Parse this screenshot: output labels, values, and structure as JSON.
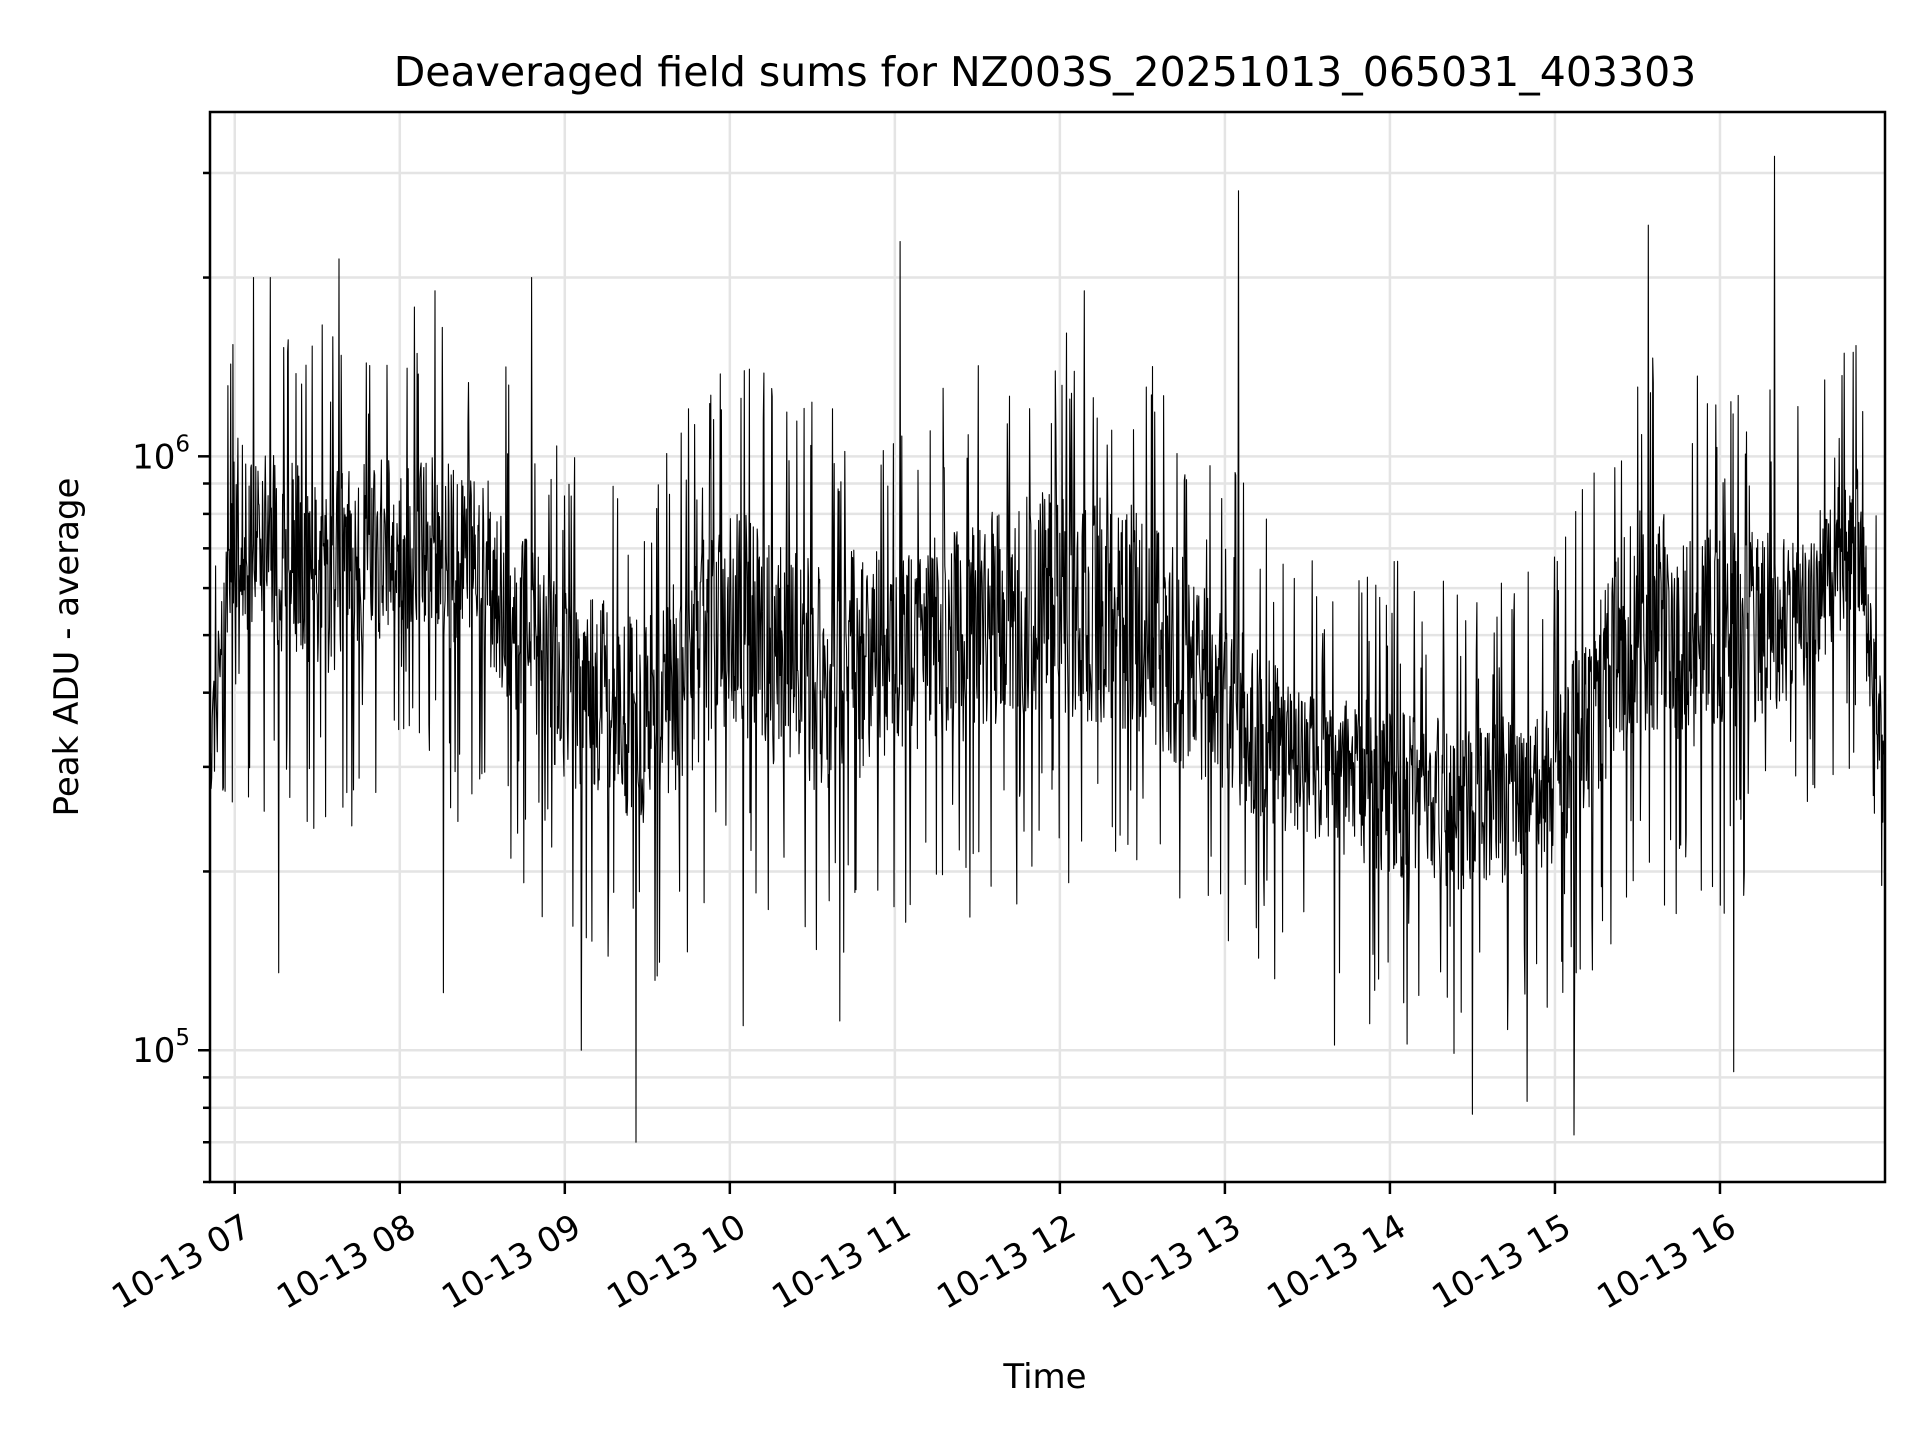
{
  "chart_data": {
    "type": "line",
    "title": "Deaveraged field sums for NZ003S_20251013_065031_403303",
    "xlabel": "Time",
    "ylabel": "Peak ADU - average",
    "x_range": [
      "2025-10-13 06:51",
      "2025-10-13 17:00"
    ],
    "ylim": [
      60000,
      3800000
    ],
    "y_scale": "log",
    "grid": true,
    "line_color": "#000000",
    "x_ticks": [
      {
        "label": "10-13 07",
        "hour": 7
      },
      {
        "label": "10-13 08",
        "hour": 8
      },
      {
        "label": "10-13 09",
        "hour": 9
      },
      {
        "label": "10-13 10",
        "hour": 10
      },
      {
        "label": "10-13 11",
        "hour": 11
      },
      {
        "label": "10-13 12",
        "hour": 12
      },
      {
        "label": "10-13 13",
        "hour": 13
      },
      {
        "label": "10-13 14",
        "hour": 14
      },
      {
        "label": "10-13 15",
        "hour": 15
      },
      {
        "label": "10-13 16",
        "hour": 16
      }
    ],
    "y_major_ticks": [
      {
        "base": "10",
        "exp": "5",
        "value": 100000
      },
      {
        "base": "10",
        "exp": "6",
        "value": 1000000
      }
    ],
    "envelope": [
      {
        "time": "06:51",
        "low": 240000,
        "high": 380000
      },
      {
        "time": "07:00",
        "low": 450000,
        "high": 1300000
      },
      {
        "time": "07:30",
        "low": 350000,
        "high": 1100000
      },
      {
        "time": "08:00",
        "low": 450000,
        "high": 1200000
      },
      {
        "time": "08:30",
        "low": 380000,
        "high": 1100000
      },
      {
        "time": "09:00",
        "low": 240000,
        "high": 700000
      },
      {
        "time": "09:30",
        "low": 200000,
        "high": 650000
      },
      {
        "time": "10:00",
        "low": 280000,
        "high": 1000000
      },
      {
        "time": "10:30",
        "low": 220000,
        "high": 850000
      },
      {
        "time": "11:00",
        "low": 250000,
        "high": 850000
      },
      {
        "time": "11:30",
        "low": 280000,
        "high": 950000
      },
      {
        "time": "12:00",
        "low": 300000,
        "high": 1100000
      },
      {
        "time": "12:30",
        "low": 280000,
        "high": 1000000
      },
      {
        "time": "13:00",
        "low": 220000,
        "high": 650000
      },
      {
        "time": "13:30",
        "low": 200000,
        "high": 450000
      },
      {
        "time": "14:00",
        "low": 170000,
        "high": 450000
      },
      {
        "time": "14:30",
        "low": 160000,
        "high": 400000
      },
      {
        "time": "15:00",
        "low": 180000,
        "high": 450000
      },
      {
        "time": "15:30",
        "low": 280000,
        "high": 1000000
      },
      {
        "time": "16:00",
        "low": 260000,
        "high": 900000
      },
      {
        "time": "16:30",
        "low": 350000,
        "high": 850000
      },
      {
        "time": "16:50",
        "low": 500000,
        "high": 1100000
      },
      {
        "time": "17:00",
        "low": 200000,
        "high": 400000
      }
    ],
    "spikes": [
      {
        "time": "07:07",
        "value": 2000000
      },
      {
        "time": "07:13",
        "value": 2000000
      },
      {
        "time": "07:16",
        "value": 135000
      },
      {
        "time": "07:38",
        "value": 2150000
      },
      {
        "time": "08:13",
        "value": 1900000
      },
      {
        "time": "08:16",
        "value": 125000
      },
      {
        "time": "08:48",
        "value": 2000000
      },
      {
        "time": "09:06",
        "value": 100000
      },
      {
        "time": "09:26",
        "value": 70000
      },
      {
        "time": "10:05",
        "value": 110000
      },
      {
        "time": "10:40",
        "value": 112000
      },
      {
        "time": "11:02",
        "value": 2300000
      },
      {
        "time": "12:09",
        "value": 1900000
      },
      {
        "time": "13:05",
        "value": 2800000
      },
      {
        "time": "13:40",
        "value": 102000
      },
      {
        "time": "14:30",
        "value": 78000
      },
      {
        "time": "14:50",
        "value": 82000
      },
      {
        "time": "15:07",
        "value": 72000
      },
      {
        "time": "15:34",
        "value": 2450000
      },
      {
        "time": "16:05",
        "value": 92000
      },
      {
        "time": "16:20",
        "value": 3200000
      }
    ]
  }
}
